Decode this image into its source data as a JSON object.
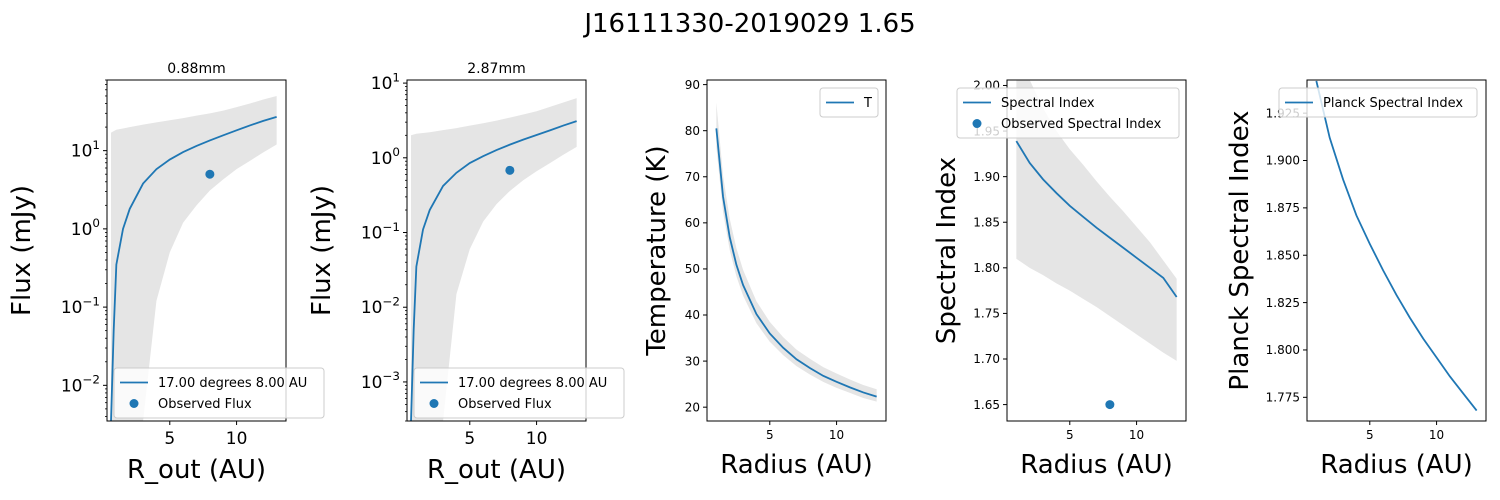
{
  "suptitle": "J16111330-2019029  1.65",
  "colors": {
    "line": "#1f77b4",
    "band": "#e5e5e5",
    "axis": "#000000"
  },
  "chart_data": [
    {
      "type": "line",
      "title": "0.88mm",
      "xlabel": "R_out (AU)",
      "ylabel": "Flux (mJy)",
      "yscale": "log",
      "xlim": [
        0.3,
        13.7
      ],
      "ylim": [
        0.0035,
        80
      ],
      "xticks": [
        5,
        10
      ],
      "xtick_labels": [
        "5",
        "10"
      ],
      "yticks": [
        0.01,
        0.1,
        1,
        10
      ],
      "ytick_labels": [
        "10^-2",
        "10^-1",
        "10^0",
        "10^1"
      ],
      "series": [
        {
          "name": "17.00 degrees 8.00 AU",
          "kind": "line",
          "x": [
            0.6,
            0.8,
            1.0,
            1.5,
            2,
            3,
            4,
            5,
            6,
            7,
            8,
            9,
            10,
            11,
            12,
            13
          ],
          "y": [
            0.0035,
            0.05,
            0.35,
            1.0,
            1.8,
            3.8,
            5.8,
            7.7,
            9.6,
            11.5,
            13.5,
            15.7,
            18.2,
            21,
            24,
            27
          ]
        },
        {
          "name": "Observed Flux",
          "kind": "scatter",
          "x": [
            8
          ],
          "y": [
            5.0
          ]
        }
      ],
      "band": {
        "x": [
          0.6,
          1,
          2,
          3,
          4,
          5,
          6,
          7,
          8,
          9,
          10,
          11,
          12,
          13
        ],
        "low": [
          0.0035,
          0.0035,
          0.0035,
          0.0035,
          0.12,
          0.5,
          1.2,
          2.0,
          3.1,
          4.3,
          5.8,
          7.4,
          9.5,
          12
        ],
        "high": [
          17,
          18.5,
          20,
          21.5,
          23,
          24.5,
          26,
          28,
          30,
          32.5,
          36,
          40,
          45,
          50
        ]
      },
      "legend": "lower-right"
    },
    {
      "type": "line",
      "title": "2.87mm",
      "xlabel": "R_out (AU)",
      "ylabel": "Flux (mJy)",
      "yscale": "log",
      "xlim": [
        0.3,
        13.7
      ],
      "ylim": [
        0.0003,
        11
      ],
      "xticks": [
        5,
        10
      ],
      "xtick_labels": [
        "5",
        "10"
      ],
      "yticks": [
        0.001,
        0.01,
        0.1,
        1,
        10
      ],
      "ytick_labels": [
        "10^-3",
        "10^-2",
        "10^-1",
        "10^0",
        "10^1"
      ],
      "series": [
        {
          "name": "17.00 degrees 8.00 AU",
          "kind": "line",
          "x": [
            0.6,
            0.8,
            1.0,
            1.5,
            2,
            3,
            4,
            5,
            6,
            7,
            8,
            9,
            10,
            11,
            12,
            13
          ],
          "y": [
            0.0003,
            0.005,
            0.035,
            0.11,
            0.2,
            0.42,
            0.63,
            0.85,
            1.05,
            1.27,
            1.5,
            1.75,
            2.02,
            2.33,
            2.7,
            3.1
          ]
        },
        {
          "name": "Observed Flux",
          "kind": "scatter",
          "x": [
            8
          ],
          "y": [
            0.68
          ]
        }
      ],
      "band": {
        "x": [
          0.6,
          1,
          2,
          3,
          4,
          5,
          6,
          7,
          8,
          9,
          10,
          11,
          12,
          13
        ],
        "low": [
          0.0003,
          0.0003,
          0.0003,
          0.0003,
          0.015,
          0.06,
          0.14,
          0.24,
          0.36,
          0.5,
          0.66,
          0.85,
          1.1,
          1.4
        ],
        "high": [
          2.0,
          2.1,
          2.2,
          2.35,
          2.5,
          2.7,
          2.9,
          3.15,
          3.45,
          3.8,
          4.2,
          4.8,
          5.5,
          6.3
        ]
      },
      "legend": "lower-right"
    },
    {
      "type": "line",
      "title": "",
      "xlabel": "Radius (AU)",
      "ylabel": "Temperature (K)",
      "yscale": "linear",
      "xlim": [
        0.3,
        13.7
      ],
      "ylim": [
        17,
        91
      ],
      "xticks": [
        5,
        10
      ],
      "xtick_labels": [
        "5",
        "10"
      ],
      "yticks": [
        20,
        30,
        40,
        50,
        60,
        70,
        80,
        90
      ],
      "ytick_labels": [
        "20",
        "30",
        "40",
        "50",
        "60",
        "70",
        "80",
        "90"
      ],
      "series": [
        {
          "name": "T",
          "kind": "line",
          "x": [
            1,
            1.5,
            2,
            2.5,
            3,
            4,
            5,
            6,
            7,
            8,
            9,
            10,
            11,
            12,
            13
          ],
          "y": [
            80.5,
            65.7,
            56.9,
            50.9,
            46.5,
            40.2,
            36.0,
            32.9,
            30.4,
            28.5,
            26.8,
            25.5,
            24.3,
            23.2,
            22.3
          ]
        }
      ],
      "band": {
        "x": [
          1,
          1.5,
          2,
          2.5,
          3,
          4,
          5,
          6,
          7,
          8,
          9,
          10,
          11,
          12,
          13
        ],
        "low": [
          76.5,
          62.4,
          54.1,
          48.4,
          44.2,
          38.2,
          34.2,
          31.3,
          28.9,
          27.1,
          25.5,
          24.2,
          23.1,
          22.0,
          21.2
        ],
        "high": [
          86.1,
          70.3,
          60.9,
          54.5,
          49.8,
          43.0,
          38.5,
          35.2,
          32.5,
          30.5,
          28.7,
          27.3,
          26.0,
          24.8,
          23.9
        ]
      },
      "legend": "top-right"
    },
    {
      "type": "line",
      "title": "",
      "xlabel": "Radius (AU)",
      "ylabel": "Spectral Index",
      "yscale": "linear",
      "xlim": [
        0.3,
        13.7
      ],
      "ylim": [
        1.632,
        2.006
      ],
      "xticks": [
        5,
        10
      ],
      "xtick_labels": [
        "5",
        "10"
      ],
      "yticks": [
        1.65,
        1.7,
        1.75,
        1.8,
        1.85,
        1.9,
        1.95,
        2.0
      ],
      "ytick_labels": [
        "1.65",
        "1.70",
        "1.75",
        "1.80",
        "1.85",
        "1.90",
        "1.95",
        "2.00"
      ],
      "series": [
        {
          "name": "Spectral Index",
          "kind": "line",
          "x": [
            1,
            2,
            3,
            4,
            5,
            6,
            7,
            8,
            9,
            10,
            11,
            12,
            13
          ],
          "y": [
            1.939,
            1.915,
            1.897,
            1.882,
            1.868,
            1.856,
            1.844,
            1.833,
            1.822,
            1.811,
            1.8,
            1.789,
            1.768
          ]
        },
        {
          "name": "Observed Spectral Index",
          "kind": "scatter",
          "x": [
            8
          ],
          "y": [
            1.65
          ]
        }
      ],
      "band": {
        "x": [
          1,
          2,
          3,
          4,
          5,
          6,
          7,
          8,
          9,
          10,
          11,
          12,
          13
        ],
        "low": [
          1.81,
          1.8,
          1.792,
          1.783,
          1.775,
          1.766,
          1.757,
          1.747,
          1.737,
          1.727,
          1.717,
          1.707,
          1.698
        ],
        "high": [
          2.006,
          2.006,
          1.975,
          1.95,
          1.93,
          1.913,
          1.895,
          1.878,
          1.862,
          1.845,
          1.828,
          1.808,
          1.788
        ]
      },
      "legend": "top-right"
    },
    {
      "type": "line",
      "title": "",
      "xlabel": "Radius (AU)",
      "ylabel": "Planck Spectral Index",
      "yscale": "linear",
      "xlim": [
        0.3,
        13.7
      ],
      "ylim": [
        1.7625,
        1.9425
      ],
      "xticks": [
        5,
        10
      ],
      "xtick_labels": [
        "5",
        "10"
      ],
      "yticks": [
        1.775,
        1.8,
        1.825,
        1.85,
        1.875,
        1.9,
        1.925
      ],
      "ytick_labels": [
        "1.775",
        "1.800",
        "1.825",
        "1.850",
        "1.875",
        "1.900",
        "1.925"
      ],
      "series": [
        {
          "name": "Planck Spectral Index",
          "kind": "line",
          "x": [
            1,
            2,
            3,
            4,
            5,
            6,
            7,
            8,
            9,
            10,
            11,
            12,
            13
          ],
          "y": [
            1.942,
            1.912,
            1.89,
            1.871,
            1.856,
            1.842,
            1.829,
            1.817,
            1.806,
            1.796,
            1.786,
            1.777,
            1.768
          ]
        }
      ],
      "band": null,
      "legend": "top-right"
    }
  ]
}
